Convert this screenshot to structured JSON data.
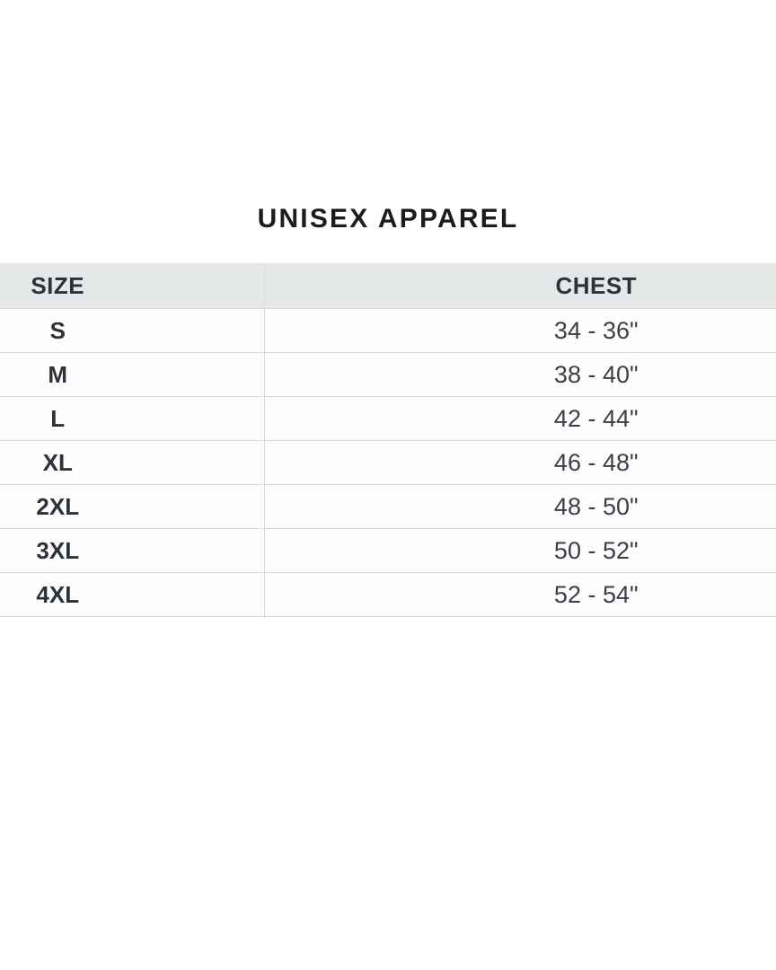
{
  "title": "UNISEX APPAREL",
  "table": {
    "headers": {
      "size": "SIZE",
      "chest": "CHEST"
    },
    "rows": [
      {
        "size": "S",
        "chest": "34 - 36\""
      },
      {
        "size": "M",
        "chest": "38 - 40\""
      },
      {
        "size": "L",
        "chest": "42 - 44\""
      },
      {
        "size": "XL",
        "chest": "46 - 48\""
      },
      {
        "size": "2XL",
        "chest": "48 - 50\""
      },
      {
        "size": "3XL",
        "chest": "50 - 52\""
      },
      {
        "size": "4XL",
        "chest": "52 - 54\""
      }
    ]
  },
  "colors": {
    "page_bg": "#ffffff",
    "title_text": "#1c1c1e",
    "header_bg": "#e4e8e8",
    "header_text": "#2c313a",
    "size_text": "#2c313a",
    "value_text": "#3b4048",
    "row_bg": "#fdfdfd",
    "border": "#d9dadb"
  }
}
